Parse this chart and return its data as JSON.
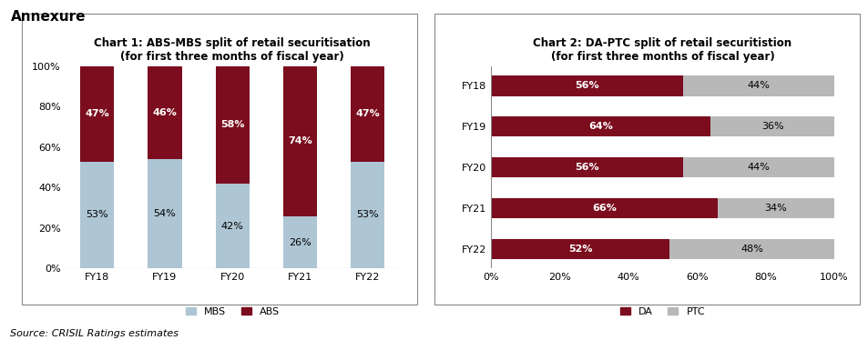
{
  "title": "Annexure",
  "source_text": "Source: CRISIL Ratings estimates",
  "chart1_title": "Chart 1: ABS-MBS split of retail securitisation\n(for first three months of fiscal year)",
  "chart1_categories": [
    "FY18",
    "FY19",
    "FY20",
    "FY21",
    "FY22"
  ],
  "chart1_mbs": [
    53,
    54,
    42,
    26,
    53
  ],
  "chart1_abs": [
    47,
    46,
    58,
    74,
    47
  ],
  "chart1_mbs_color": "#aec6d4",
  "chart1_abs_color": "#7B0D1E",
  "chart1_legend": [
    "MBS",
    "ABS"
  ],
  "chart2_title": "Chart 2: DA-PTC split of retail securitistion\n(for first three months of fiscal year)",
  "chart2_categories": [
    "FY22",
    "FY21",
    "FY20",
    "FY19",
    "FY18"
  ],
  "chart2_da": [
    52,
    66,
    56,
    64,
    56
  ],
  "chart2_ptc": [
    48,
    34,
    44,
    36,
    44
  ],
  "chart2_da_color": "#7B0D1E",
  "chart2_ptc_color": "#b8b8b8",
  "chart2_legend": [
    "DA",
    "PTC"
  ],
  "bg_color": "#ffffff",
  "border_color": "#888888",
  "title_fontsize": 11,
  "chart_title_fontsize": 8.5,
  "label_fontsize": 8,
  "tick_fontsize": 8,
  "legend_fontsize": 8,
  "source_fontsize": 8
}
